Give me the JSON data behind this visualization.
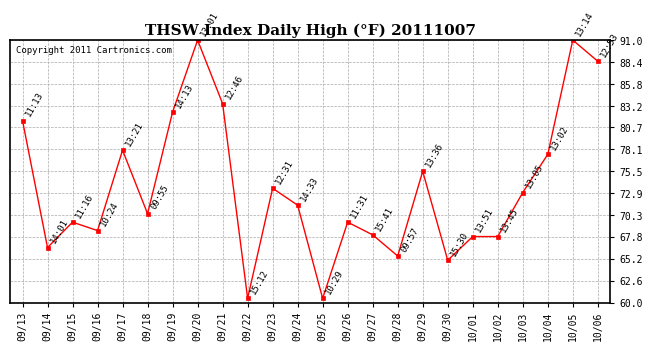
{
  "title": "THSW Index Daily High (°F) 20111007",
  "copyright": "Copyright 2011 Cartronics.com",
  "x_labels": [
    "09/13",
    "09/14",
    "09/15",
    "09/16",
    "09/17",
    "09/18",
    "09/19",
    "09/20",
    "09/21",
    "09/22",
    "09/23",
    "09/24",
    "09/25",
    "09/26",
    "09/27",
    "09/28",
    "09/29",
    "09/30",
    "10/01",
    "10/02",
    "10/03",
    "10/04",
    "10/05",
    "10/06"
  ],
  "y_values": [
    81.5,
    66.5,
    69.5,
    68.5,
    78.0,
    70.5,
    82.5,
    91.0,
    83.5,
    60.5,
    73.5,
    71.5,
    60.5,
    69.5,
    68.0,
    65.5,
    75.5,
    65.0,
    67.8,
    67.8,
    73.0,
    77.5,
    91.0,
    88.5
  ],
  "point_labels": [
    "11:13",
    "14:01",
    "11:16",
    "10:24",
    "13:21",
    "09:55",
    "14:13",
    "13:01",
    "12:46",
    "15:12",
    "12:31",
    "14:33",
    "10:29",
    "11:31",
    "15:41",
    "09:57",
    "13:36",
    "15:30",
    "13:51",
    "13:45",
    "13:05",
    "13:02",
    "13:14",
    "12:53"
  ],
  "line_color": "#ff0000",
  "marker_color": "#ff0000",
  "background_color": "#ffffff",
  "grid_color": "#aaaaaa",
  "ylim": [
    60.0,
    91.0
  ],
  "yticks": [
    60.0,
    62.6,
    65.2,
    67.8,
    70.3,
    72.9,
    75.5,
    78.1,
    80.7,
    83.2,
    85.8,
    88.4,
    91.0
  ],
  "title_fontsize": 11,
  "label_fontsize": 6.5,
  "tick_fontsize": 7,
  "copyright_fontsize": 6.5
}
